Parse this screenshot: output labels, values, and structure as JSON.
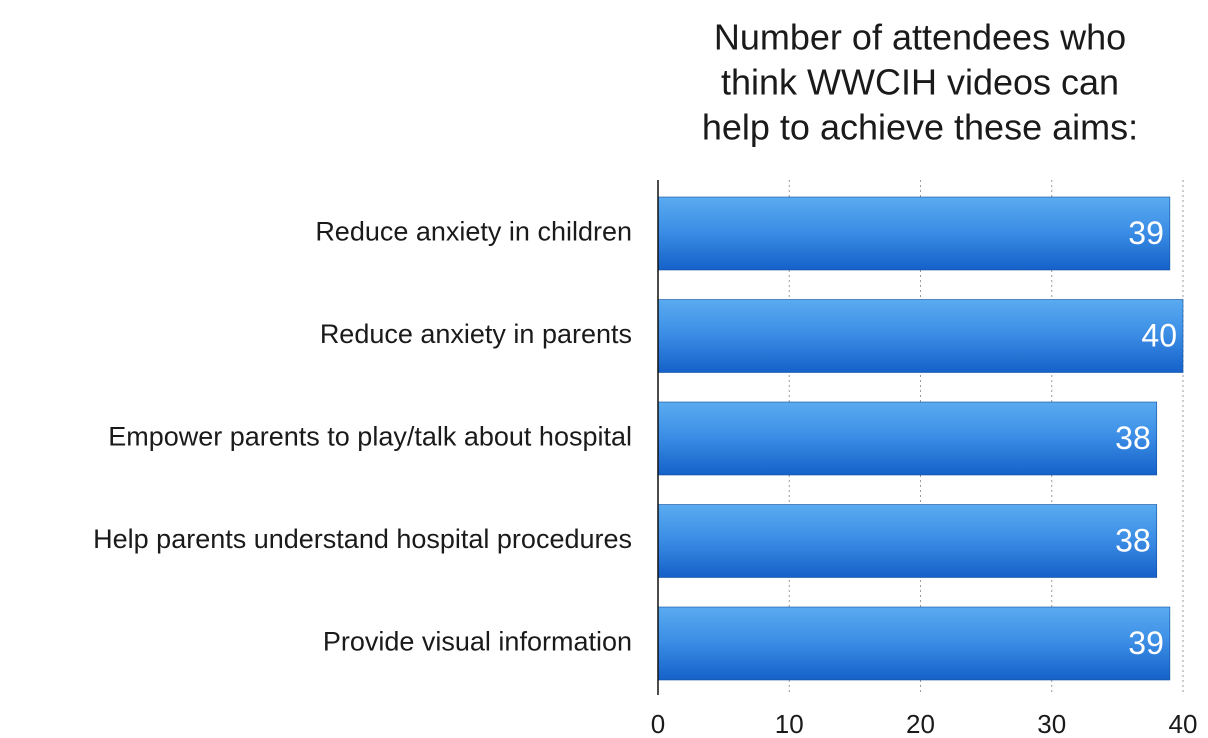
{
  "chart_data": {
    "type": "bar",
    "orientation": "horizontal",
    "title_lines": [
      "Number of attendees who",
      "think WWCIH videos can",
      "help to achieve these aims:"
    ],
    "categories": [
      "Reduce anxiety in children",
      "Reduce anxiety in parents",
      "Empower parents to play/talk about hospital",
      "Help parents understand hospital procedures",
      "Provide visual information"
    ],
    "values": [
      39,
      40,
      38,
      38,
      39
    ],
    "xlabel": "",
    "ylabel": "",
    "xlim": [
      0,
      40
    ],
    "x_ticks": [
      0,
      10,
      20,
      30,
      40
    ],
    "grid": true,
    "data_labels": true,
    "colors": {
      "bar_top": "#5aabf0",
      "bar_bottom": "#1561c9",
      "bar_edge": "#0f4f9e"
    }
  }
}
